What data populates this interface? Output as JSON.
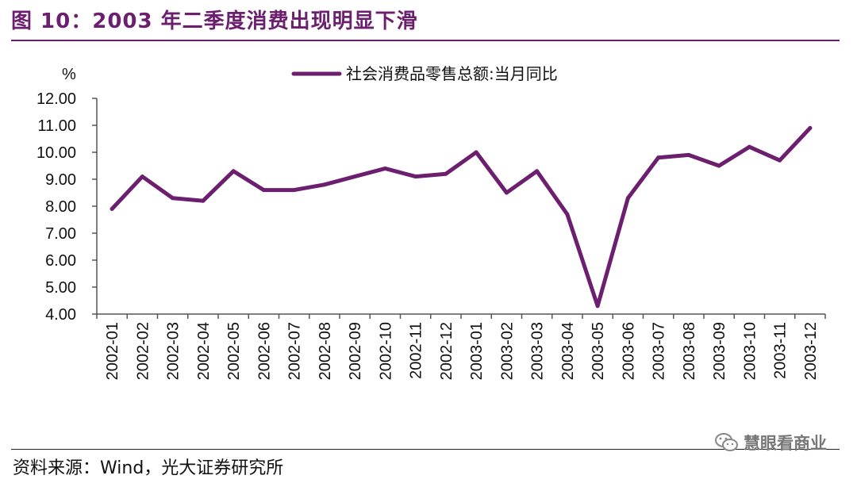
{
  "figure": {
    "title": "图 10：2003 年二季度消费出现明显下滑",
    "source": "资料来源：Wind，光大证券研究所",
    "watermark": "慧眼看商业"
  },
  "colors": {
    "accent": "#6b1f6e",
    "line": "#6b1f6e",
    "axis": "#555555"
  },
  "chart_data": {
    "type": "line",
    "unit_label": "%",
    "ylim": [
      4.0,
      12.0
    ],
    "yticks": [
      "4.00",
      "5.00",
      "6.00",
      "7.00",
      "8.00",
      "9.00",
      "10.00",
      "11.00",
      "12.00"
    ],
    "grid": false,
    "legend_position": "top-center",
    "categories": [
      "2002-01",
      "2002-02",
      "2002-03",
      "2002-04",
      "2002-05",
      "2002-06",
      "2002-07",
      "2002-08",
      "2002-09",
      "2002-10",
      "2002-11",
      "2002-12",
      "2003-01",
      "2003-02",
      "2003-03",
      "2003-04",
      "2003-05",
      "2003-06",
      "2003-07",
      "2003-08",
      "2003-09",
      "2003-10",
      "2003-11",
      "2003-12"
    ],
    "series": [
      {
        "name": "社会消费品零售总额:当月同比",
        "values": [
          7.9,
          9.1,
          8.3,
          8.2,
          9.3,
          8.6,
          8.6,
          8.8,
          9.1,
          9.4,
          9.1,
          9.2,
          10.0,
          8.5,
          9.3,
          7.7,
          4.3,
          8.3,
          9.8,
          9.9,
          9.5,
          10.2,
          9.7,
          10.9
        ]
      }
    ]
  }
}
